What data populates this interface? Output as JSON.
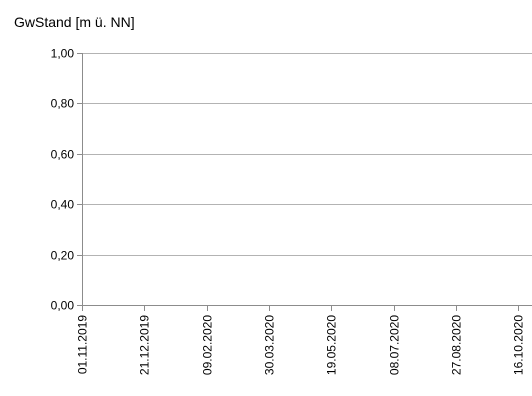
{
  "chart_data": {
    "type": "line",
    "title": "",
    "xlabel": "",
    "ylabel": "GwStand [m ü. NN]",
    "ylim": [
      0,
      1
    ],
    "yticks": [
      "0,00",
      "0,20",
      "0,40",
      "0,60",
      "0,80",
      "1,00"
    ],
    "yticks_values": [
      0,
      0.2,
      0.4,
      0.6,
      0.8,
      1.0
    ],
    "xticks": [
      "01.11.2019",
      "21.12.2019",
      "09.02.2020",
      "30.03.2020",
      "19.05.2020",
      "08.07.2020",
      "27.08.2020",
      "16.10.2020"
    ],
    "x_range": [
      "01.11.2019",
      "16.10.2020"
    ],
    "grid": true,
    "legend": "none",
    "series": [],
    "colors": {
      "grid": "#b3b3b3",
      "axis": "#8c8c8c",
      "text": "#000000"
    }
  }
}
